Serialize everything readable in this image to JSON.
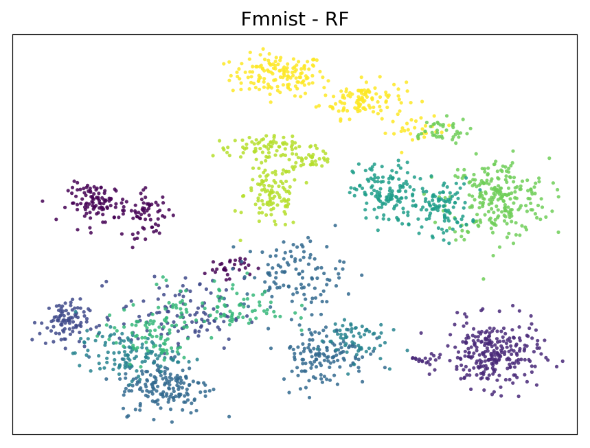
{
  "chart_data": {
    "type": "scatter",
    "title": "Fmnist - RF",
    "xlabel": "",
    "ylabel": "",
    "xlim": [
      0,
      100
    ],
    "ylim": [
      0,
      100
    ],
    "xticks": [],
    "yticks": [],
    "grid": false,
    "legend": "none",
    "colormap": "viridis",
    "class_colors": [
      "#440154",
      "#482878",
      "#3e4989",
      "#31688e",
      "#26828e",
      "#1f9e89",
      "#35b779",
      "#6ece58",
      "#b5de2b",
      "#fde725"
    ],
    "clusters": [
      {
        "class": 9,
        "n": 140,
        "cx": 47,
        "cy": 90,
        "sx": 4.2,
        "sy": 2.6
      },
      {
        "class": 9,
        "n": 110,
        "cx": 62,
        "cy": 84,
        "sx": 3.8,
        "sy": 2.4
      },
      {
        "class": 9,
        "n": 25,
        "cx": 72,
        "cy": 76,
        "sx": 3.0,
        "sy": 1.6
      },
      {
        "class": 8,
        "n": 70,
        "cx": 45,
        "cy": 72,
        "sx": 4.8,
        "sy": 1.2
      },
      {
        "class": 8,
        "n": 110,
        "cx": 46,
        "cy": 60,
        "sx": 2.5,
        "sy": 4.5
      },
      {
        "class": 8,
        "n": 30,
        "cx": 53,
        "cy": 69,
        "sx": 1.8,
        "sy": 1.0
      },
      {
        "class": 7,
        "n": 240,
        "cx": 86,
        "cy": 59,
        "sx": 4.5,
        "sy": 5.0
      },
      {
        "class": 7,
        "n": 40,
        "cx": 75,
        "cy": 76,
        "sx": 3.0,
        "sy": 1.6
      },
      {
        "class": 5,
        "n": 130,
        "cx": 66,
        "cy": 60,
        "sx": 2.8,
        "sy": 4.0
      },
      {
        "class": 5,
        "n": 100,
        "cx": 76,
        "cy": 57,
        "sx": 2.6,
        "sy": 3.5
      },
      {
        "class": 0,
        "n": 100,
        "cx": 15,
        "cy": 58,
        "sx": 2.6,
        "sy": 2.4
      },
      {
        "class": 0,
        "n": 60,
        "cx": 24,
        "cy": 55,
        "sx": 2.2,
        "sy": 2.8
      },
      {
        "class": 0,
        "n": 30,
        "cx": 38,
        "cy": 42,
        "sx": 2.0,
        "sy": 1.4
      },
      {
        "class": 1,
        "n": 260,
        "cx": 85,
        "cy": 20,
        "sx": 4.2,
        "sy": 4.2
      },
      {
        "class": 1,
        "n": 14,
        "cx": 73,
        "cy": 19,
        "sx": 1.3,
        "sy": 0.8
      },
      {
        "class": 2,
        "n": 90,
        "cx": 9,
        "cy": 28,
        "sx": 2.2,
        "sy": 2.8
      },
      {
        "class": 2,
        "n": 110,
        "cx": 30,
        "cy": 30,
        "sx": 5.5,
        "sy": 4.5
      },
      {
        "class": 3,
        "n": 160,
        "cx": 27,
        "cy": 12,
        "sx": 4.0,
        "sy": 3.5
      },
      {
        "class": 3,
        "n": 130,
        "cx": 55,
        "cy": 20,
        "sx": 4.0,
        "sy": 4.0
      },
      {
        "class": 3,
        "n": 110,
        "cx": 50,
        "cy": 40,
        "sx": 4.5,
        "sy": 4.5
      },
      {
        "class": 4,
        "n": 110,
        "cx": 20,
        "cy": 20,
        "sx": 4.5,
        "sy": 3.0
      },
      {
        "class": 4,
        "n": 60,
        "cx": 60,
        "cy": 24,
        "sx": 3.0,
        "sy": 3.0
      },
      {
        "class": 6,
        "n": 80,
        "cx": 24,
        "cy": 25,
        "sx": 4.0,
        "sy": 3.5
      },
      {
        "class": 6,
        "n": 80,
        "cx": 38,
        "cy": 32,
        "sx": 5.5,
        "sy": 3.5
      }
    ]
  }
}
